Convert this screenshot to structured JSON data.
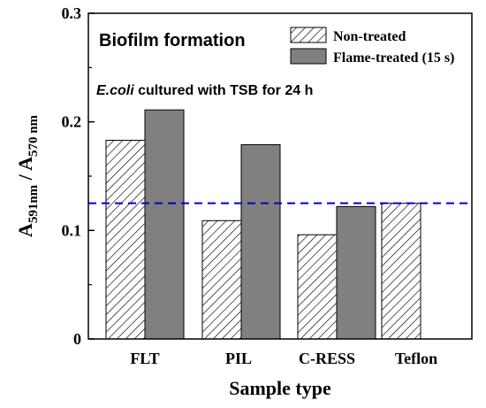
{
  "chart_data": {
    "type": "bar",
    "categories": [
      "FLT",
      "PIL",
      "C-RESS",
      "Teflon"
    ],
    "series": [
      {
        "name": "Non-treated",
        "values": [
          0.183,
          0.109,
          0.096,
          0.125
        ],
        "pattern": "hatch",
        "color": "#ffffff"
      },
      {
        "name": "Flame-treated (15 s)",
        "values": [
          0.211,
          0.179,
          0.122,
          null
        ],
        "pattern": "solid",
        "color": "#808080"
      }
    ],
    "ylim": [
      0,
      0.3
    ],
    "yticks": [
      "0",
      "0.1",
      "0.2",
      "0.3"
    ],
    "xlabel": "Sample type",
    "ylabel": {
      "base": "A",
      "sub1": "591nm",
      "sep": " / ",
      "base2": "A",
      "sub2": "570 nm"
    },
    "annotations": {
      "title": "Biofilm formation",
      "subtitle_italic": "E.coli",
      "subtitle_rest": " cultured with TSB for 24 h"
    },
    "reference_line": {
      "y": 0.125,
      "color": "#0000cc",
      "style": "dashed"
    },
    "legend_position": "top-right",
    "grid": false
  }
}
